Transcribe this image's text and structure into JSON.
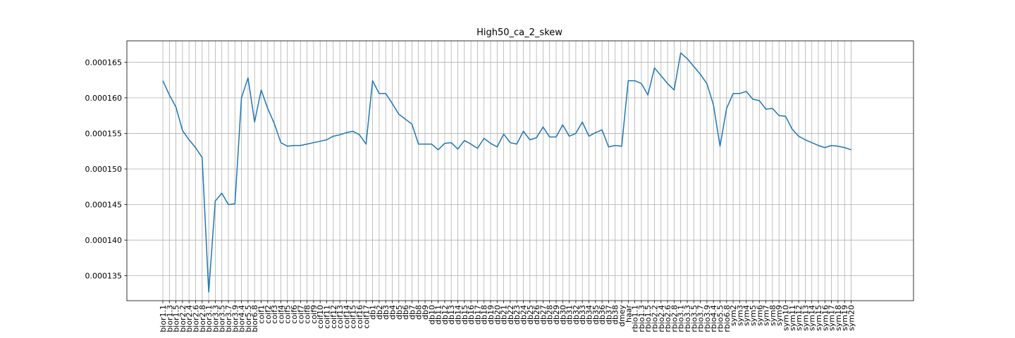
{
  "chart_data": {
    "type": "line",
    "title": "High50_ca_2_skew",
    "xlabel": "",
    "ylabel": "",
    "ylim": [
      0.0001315,
      0.000168
    ],
    "yticks": [
      "0.000135",
      "0.000140",
      "0.000145",
      "0.000150",
      "0.000155",
      "0.000160",
      "0.000165"
    ],
    "grid": true,
    "categories": [
      "bior1.1",
      "bior1.3",
      "bior1.5",
      "bior2.2",
      "bior2.4",
      "bior2.6",
      "bior2.8",
      "bior3.1",
      "bior3.3",
      "bior3.5",
      "bior3.7",
      "bior3.9",
      "bior4.4",
      "bior5.5",
      "bior6.8",
      "coif1",
      "coif2",
      "coif3",
      "coif4",
      "coif5",
      "coif6",
      "coif7",
      "coif8",
      "coif9",
      "coif10",
      "coif11",
      "coif12",
      "coif13",
      "coif14",
      "coif15",
      "coif16",
      "coif17",
      "db1",
      "db2",
      "db3",
      "db4",
      "db5",
      "db6",
      "db7",
      "db8",
      "db9",
      "db10",
      "db11",
      "db12",
      "db13",
      "db14",
      "db15",
      "db16",
      "db17",
      "db18",
      "db19",
      "db20",
      "db21",
      "db22",
      "db23",
      "db24",
      "db25",
      "db26",
      "db27",
      "db28",
      "db29",
      "db30",
      "db31",
      "db32",
      "db33",
      "db34",
      "db35",
      "db36",
      "db37",
      "db38",
      "dmey",
      "haar",
      "rbio1.1",
      "rbio1.3",
      "rbio1.5",
      "rbio2.2",
      "rbio2.4",
      "rbio2.6",
      "rbio2.8",
      "rbio3.1",
      "rbio3.3",
      "rbio3.5",
      "rbio3.7",
      "rbio3.9",
      "rbio4.4",
      "rbio5.5",
      "rbio6.8",
      "sym2",
      "sym3",
      "sym4",
      "sym5",
      "sym6",
      "sym7",
      "sym8",
      "sym9",
      "sym10",
      "sym11",
      "sym12",
      "sym13",
      "sym14",
      "sym15",
      "sym16",
      "sym17",
      "sym18",
      "sym19",
      "sym20"
    ],
    "series": [
      {
        "name": "",
        "color": "#1f77b4",
        "values": [
          0.0001624,
          0.0001604,
          0.0001587,
          0.0001554,
          0.0001541,
          0.000153,
          0.0001516,
          0.0001327,
          0.0001455,
          0.0001466,
          0.000145,
          0.0001451,
          0.00016,
          0.0001628,
          0.0001566,
          0.0001611,
          0.0001585,
          0.0001564,
          0.0001537,
          0.0001532,
          0.0001533,
          0.0001533,
          0.0001535,
          0.0001537,
          0.0001539,
          0.0001541,
          0.0001546,
          0.0001548,
          0.0001551,
          0.0001553,
          0.0001548,
          0.0001535,
          0.0001624,
          0.0001606,
          0.0001606,
          0.0001592,
          0.0001577,
          0.000157,
          0.0001563,
          0.0001535,
          0.0001535,
          0.0001535,
          0.0001527,
          0.0001536,
          0.0001537,
          0.0001528,
          0.000154,
          0.0001535,
          0.0001529,
          0.0001543,
          0.0001536,
          0.0001531,
          0.0001549,
          0.0001537,
          0.0001535,
          0.0001553,
          0.0001541,
          0.0001544,
          0.0001559,
          0.0001545,
          0.0001545,
          0.0001562,
          0.0001546,
          0.000155,
          0.0001566,
          0.0001546,
          0.0001551,
          0.0001555,
          0.0001531,
          0.0001533,
          0.0001532,
          0.0001624,
          0.0001624,
          0.000162,
          0.0001604,
          0.0001642,
          0.0001631,
          0.000162,
          0.0001611,
          0.0001663,
          0.0001655,
          0.0001644,
          0.0001633,
          0.000162,
          0.000159,
          0.0001532,
          0.0001585,
          0.0001606,
          0.0001606,
          0.0001609,
          0.0001598,
          0.0001596,
          0.0001584,
          0.0001585,
          0.0001575,
          0.0001574,
          0.0001556,
          0.0001546,
          0.0001541,
          0.0001537,
          0.0001533,
          0.000153,
          0.0001533,
          0.0001532,
          0.000153,
          0.0001527
        ]
      }
    ]
  }
}
